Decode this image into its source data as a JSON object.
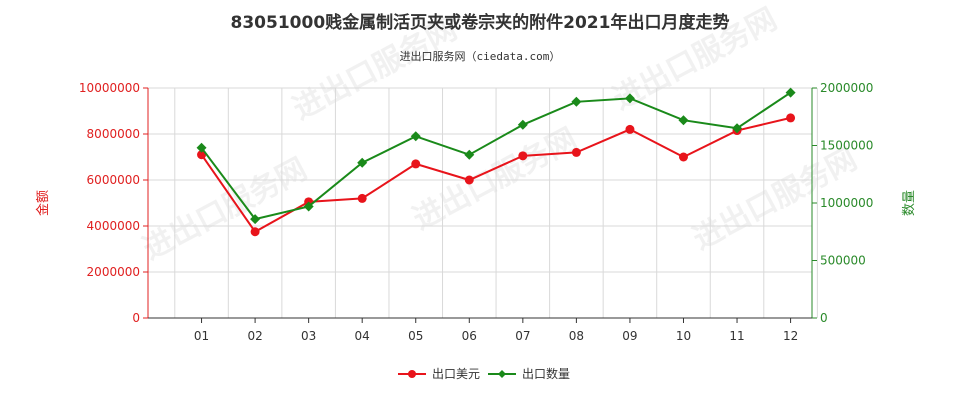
{
  "chart_data": {
    "type": "line",
    "title": "83051000贱金属制活页夹或卷宗夹的附件2021年出口月度走势",
    "subtitle": "进出口服务网（ciedata.com）",
    "categories": [
      "01",
      "02",
      "03",
      "04",
      "05",
      "06",
      "07",
      "08",
      "09",
      "10",
      "11",
      "12"
    ],
    "series": [
      {
        "name": "出口美元",
        "axis": "left",
        "color": "#e8141b",
        "values": [
          7100000,
          3750000,
          5050000,
          5200000,
          6700000,
          6000000,
          7050000,
          7200000,
          8200000,
          7000000,
          8150000,
          8700000
        ]
      },
      {
        "name": "出口数量",
        "axis": "right",
        "color": "#1a8a1a",
        "values": [
          1480000,
          860000,
          970000,
          1350000,
          1580000,
          1420000,
          1680000,
          1880000,
          1910000,
          1720000,
          1650000,
          1960000
        ]
      }
    ],
    "y_left": {
      "label": "金额",
      "range": [
        0,
        10000000
      ],
      "ticks": [
        "0",
        "2000000",
        "4000000",
        "6000000",
        "8000000",
        "10000000"
      ]
    },
    "y_right": {
      "label": "数量",
      "range": [
        0,
        2000000
      ],
      "ticks": [
        "0",
        "500000",
        "1000000",
        "1500000",
        "2000000"
      ]
    },
    "grid": true,
    "legend_position": "bottom-center",
    "watermark": "进出口服务网"
  }
}
